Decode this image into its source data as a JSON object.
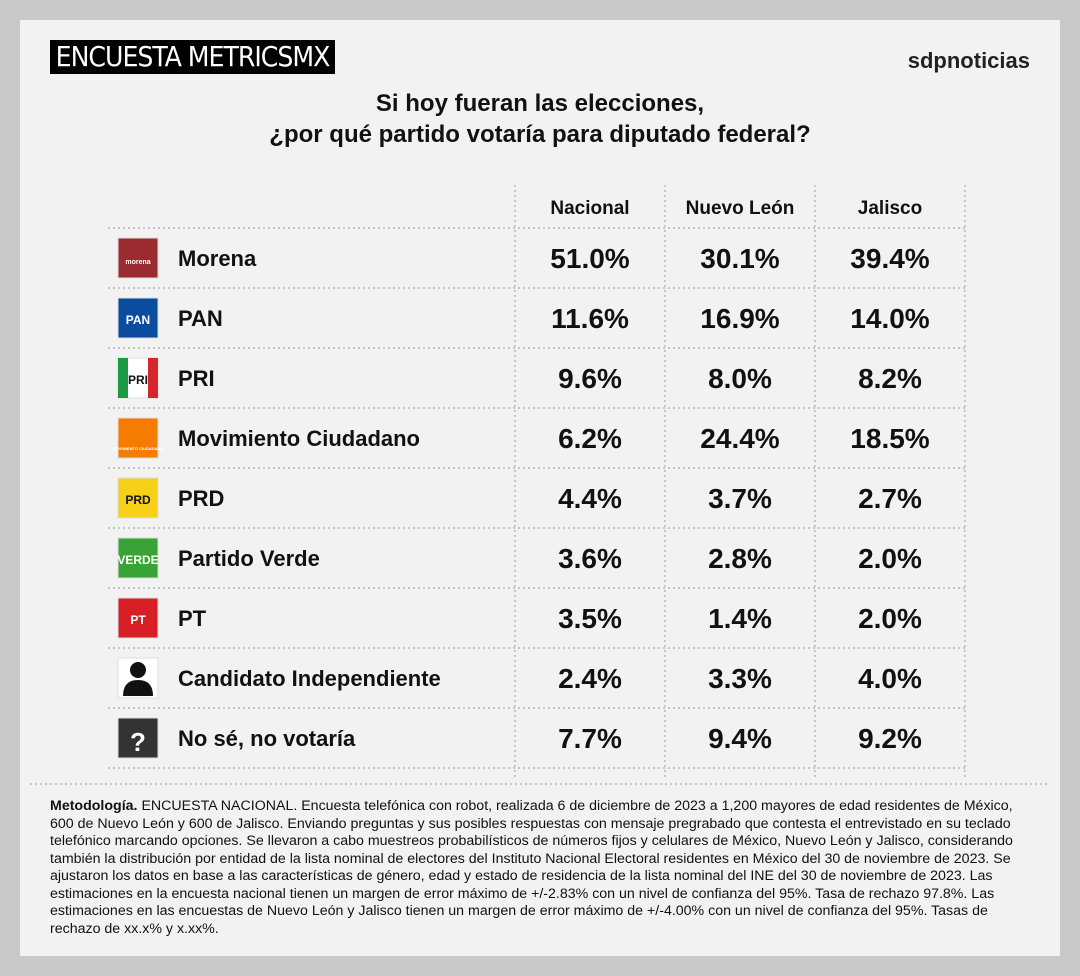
{
  "header": {
    "brand": "ENCUESTA METRICSMX",
    "logo": "sdpnoticias"
  },
  "title": [
    "Si hoy fueran las elecciones,",
    "¿por qué partido votaría para diputado federal?"
  ],
  "table": {
    "columns": [
      "Nacional",
      "Nuevo León",
      "Jalisco"
    ],
    "rows": [
      {
        "party": "Morena",
        "icon_text": "morena",
        "icon_color": "#9b2b2e",
        "values": [
          "51.0%",
          "30.1%",
          "39.4%"
        ]
      },
      {
        "party": "PAN",
        "icon_text": "PAN",
        "icon_color": "#0a4c9e",
        "values": [
          "11.6%",
          "16.9%",
          "14.0%"
        ]
      },
      {
        "party": "PRI",
        "icon_text": "PRI",
        "icon_color": "#ffffff",
        "values": [
          "9.6%",
          "8.0%",
          "8.2%"
        ]
      },
      {
        "party": "Movimiento Ciudadano",
        "icon_text": "MOVIMIENTO CIUDADANO",
        "icon_color": "#f57c00",
        "values": [
          "6.2%",
          "24.4%",
          "18.5%"
        ]
      },
      {
        "party": "PRD",
        "icon_text": "PRD",
        "icon_color": "#f7d117",
        "values": [
          "4.4%",
          "3.7%",
          "2.7%"
        ]
      },
      {
        "party": "Partido Verde",
        "icon_text": "VERDE",
        "icon_color": "#3aa335",
        "values": [
          "3.6%",
          "2.8%",
          "2.0%"
        ]
      },
      {
        "party": "PT",
        "icon_text": "PT",
        "icon_color": "#d91f26",
        "values": [
          "3.5%",
          "1.4%",
          "2.0%"
        ]
      },
      {
        "party": "Candidato Independiente",
        "icon_color": "#ffffff",
        "values": [
          "2.4%",
          "3.3%",
          "4.0%"
        ]
      },
      {
        "party": "No sé, no votaría",
        "icon_text": "?",
        "icon_color": "#333333",
        "values": [
          "7.7%",
          "9.4%",
          "9.2%"
        ]
      }
    ]
  },
  "methodology": {
    "label": "Metodología.",
    "text": "ENCUESTA NACIONAL. Encuesta telefónica con robot, realizada 6 de diciembre de 2023 a 1,200 mayores de edad residentes de México, 600 de Nuevo León y 600 de Jalisco. Enviando preguntas y sus posibles respuestas con mensaje pregrabado que contesta el entrevistado en su teclado telefónico marcando opciones. Se llevaron a cabo muestreos probabilísticos de números fijos y celulares de México, Nuevo León y Jalisco, considerando también la distribución por entidad de la lista nominal de electores del Instituto Nacional Electoral residentes en México del 30 de noviembre de 2023. Se ajustaron los datos en base a las características de género, edad y estado de residencia de la lista nominal del INE del 30 de noviembre de 2023. Las estimaciones en la encuesta nacional tienen un margen de error máximo de +/-2.83% con un nivel de confianza del 95%. Tasa de rechazo 97.8%. Las estimaciones en las encuestas de Nuevo León y Jalisco tienen un margen de error máximo de +/-4.00% con un nivel de confianza del 95%. Tasas de rechazo de xx.x% y x.xx%."
  }
}
